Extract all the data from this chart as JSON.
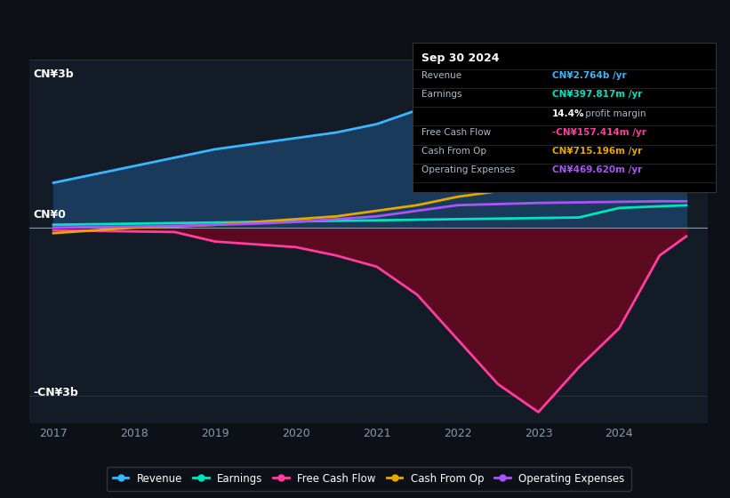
{
  "background_color": "#0d1117",
  "plot_bg_color": "#131c26",
  "ylabel_top": "CN¥3b",
  "ylabel_bottom": "-CN¥3b",
  "ylabel_zero": "CN¥0",
  "revenue": {
    "label": "Revenue",
    "color": "#38b6ff",
    "fill_color": "#1a3a5c",
    "values_x": [
      2017.0,
      2017.5,
      2018.0,
      2018.5,
      2019.0,
      2019.5,
      2020.0,
      2020.5,
      2021.0,
      2021.5,
      2022.0,
      2022.5,
      2023.0,
      2023.5,
      2024.0,
      2024.5,
      2024.83
    ],
    "values_y": [
      0.8,
      0.95,
      1.1,
      1.25,
      1.4,
      1.5,
      1.6,
      1.7,
      1.85,
      2.1,
      2.5,
      2.55,
      2.4,
      2.3,
      2.35,
      2.6,
      2.764
    ]
  },
  "earnings": {
    "label": "Earnings",
    "color": "#00e5c0",
    "values_x": [
      2017.0,
      2017.5,
      2018.0,
      2018.5,
      2019.0,
      2019.5,
      2020.0,
      2020.5,
      2021.0,
      2021.5,
      2022.0,
      2022.5,
      2023.0,
      2023.5,
      2024.0,
      2024.5,
      2024.83
    ],
    "values_y": [
      0.05,
      0.06,
      0.07,
      0.08,
      0.09,
      0.1,
      0.11,
      0.12,
      0.13,
      0.14,
      0.15,
      0.16,
      0.17,
      0.18,
      0.35,
      0.38,
      0.3978
    ]
  },
  "free_cash_flow": {
    "label": "Free Cash Flow",
    "color": "#ff3da0",
    "fill_color": "#5c0a20",
    "values_x": [
      2017.0,
      2017.5,
      2018.0,
      2018.5,
      2019.0,
      2019.5,
      2020.0,
      2020.5,
      2021.0,
      2021.5,
      2022.0,
      2022.5,
      2023.0,
      2023.5,
      2024.0,
      2024.5,
      2024.83
    ],
    "values_y": [
      -0.05,
      -0.06,
      -0.07,
      -0.08,
      -0.25,
      -0.3,
      -0.35,
      -0.5,
      -0.7,
      -1.2,
      -2.0,
      -2.8,
      -3.3,
      -2.5,
      -1.8,
      -0.5,
      -0.157
    ]
  },
  "cash_from_op": {
    "label": "Cash From Op",
    "color": "#e5a800",
    "values_x": [
      2017.0,
      2017.5,
      2018.0,
      2018.5,
      2019.0,
      2019.5,
      2020.0,
      2020.5,
      2021.0,
      2021.5,
      2022.0,
      2022.5,
      2023.0,
      2023.5,
      2024.0,
      2024.5,
      2024.83
    ],
    "values_y": [
      -0.1,
      -0.05,
      0.0,
      0.02,
      0.05,
      0.1,
      0.15,
      0.2,
      0.3,
      0.4,
      0.55,
      0.65,
      0.7,
      0.65,
      0.68,
      0.71,
      0.715
    ]
  },
  "operating_expenses": {
    "label": "Operating Expenses",
    "color": "#a855f7",
    "values_x": [
      2017.0,
      2017.5,
      2018.0,
      2018.5,
      2019.0,
      2019.5,
      2020.0,
      2020.5,
      2021.0,
      2021.5,
      2022.0,
      2022.5,
      2023.0,
      2023.5,
      2024.0,
      2024.5,
      2024.83
    ],
    "values_y": [
      0.0,
      0.01,
      0.02,
      0.03,
      0.05,
      0.07,
      0.1,
      0.15,
      0.2,
      0.3,
      0.4,
      0.42,
      0.44,
      0.45,
      0.46,
      0.47,
      0.4696
    ]
  },
  "info_box": {
    "bg_color": "#000000",
    "border_color": "#333333",
    "title": "Sep 30 2024",
    "rows": [
      {
        "label": "Revenue",
        "value": "CN¥2.764b /yr",
        "value_color": "#38b6ff",
        "bold_part": null
      },
      {
        "label": "Earnings",
        "value": "CN¥397.817m /yr",
        "value_color": "#00e5c0",
        "bold_part": null
      },
      {
        "label": "",
        "value": "14.4% profit margin",
        "value_color": "#ffffff",
        "bold_part": "14.4%"
      },
      {
        "label": "Free Cash Flow",
        "value": "-CN¥157.414m /yr",
        "value_color": "#ff3da0",
        "bold_part": null
      },
      {
        "label": "Cash From Op",
        "value": "CN¥715.196m /yr",
        "value_color": "#e5a800",
        "bold_part": null
      },
      {
        "label": "Operating Expenses",
        "value": "CN¥469.620m /yr",
        "value_color": "#a855f7",
        "bold_part": null
      }
    ]
  },
  "ylim": [
    -3.5,
    3.0
  ],
  "xlim": [
    2016.7,
    2025.1
  ],
  "grid_color": "#2a3a4a",
  "tick_color": "#8899aa",
  "zero_line_color": "#8899aa",
  "x_ticks": [
    2017,
    2018,
    2019,
    2020,
    2021,
    2022,
    2023,
    2024
  ]
}
